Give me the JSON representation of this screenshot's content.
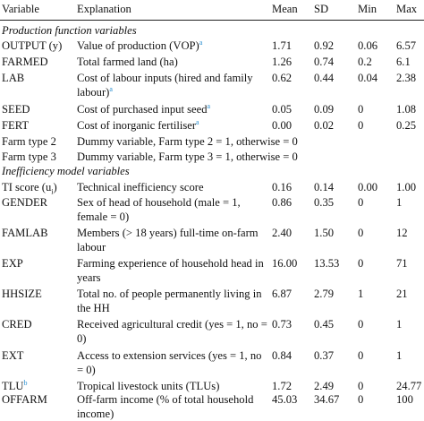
{
  "header": {
    "variable": "Variable",
    "explanation": "Explanation",
    "mean": "Mean",
    "sd": "SD",
    "min": "Min",
    "max": "Max"
  },
  "sections": {
    "production": "Production function variables",
    "inefficiency": "Inefficiency model variables"
  },
  "rows": [
    {
      "variable": "OUTPUT (y)",
      "explanation": "Value of production (VOP)",
      "sup": "a",
      "mean": "1.71",
      "sd": "0.92",
      "min": "0.06",
      "max": "6.57"
    },
    {
      "variable": "FARMED",
      "explanation": "Total farmed land (ha)",
      "mean": "1.26",
      "sd": "0.74",
      "min": "0.2",
      "max": "6.1"
    },
    {
      "variable": "LAB",
      "explanation": "Cost of labour inputs (hired and family labour)",
      "sup": "a",
      "mean": "0.62",
      "sd": "0.44",
      "min": "0.04",
      "max": "2.38"
    },
    {
      "variable": "SEED",
      "explanation": "Cost of purchased input seed",
      "sup": "a",
      "mean": "0.05",
      "sd": "0.09",
      "min": "0",
      "max": "1.08"
    },
    {
      "variable": "FERT",
      "explanation": "Cost of inorganic fertiliser",
      "sup": "a",
      "mean": "0.00",
      "sd": "0.02",
      "min": "0",
      "max": "0.25"
    },
    {
      "variable": "Farm type 2",
      "explanation": "Dummy variable, Farm type 2 = 1, otherwise = 0"
    },
    {
      "variable": "Farm type 3",
      "explanation": "Dummy variable, Farm type 3 = 1, otherwise = 0"
    },
    {
      "variable": "TI score (u",
      "sub": "i",
      "variable_end": ")",
      "explanation": "Technical inefficiency score",
      "mean": "0.16",
      "sd": "0.14",
      "min": "0.00",
      "max": "1.00"
    },
    {
      "variable": "GENDER",
      "explanation": "Sex of head of household (male = 1, female = 0)",
      "mean": "0.86",
      "sd": "0.35",
      "min": "0",
      "max": "1"
    },
    {
      "variable": "FAMLAB",
      "explanation": "Members (> 18 years) full-time on-farm labour",
      "mean": "2.40",
      "sd": "1.50",
      "min": "0",
      "max": "12"
    },
    {
      "variable": "EXP",
      "explanation": "Farming experience of household head in years",
      "mean": "16.00",
      "sd": "13.53",
      "min": "0",
      "max": "71"
    },
    {
      "variable": "HHSIZE",
      "explanation": "Total no. of people permanently living in the HH",
      "mean": "6.87",
      "sd": "2.79",
      "min": "1",
      "max": "21"
    },
    {
      "variable": "CRED",
      "explanation": "Received agricultural credit (yes = 1, no = 0)",
      "mean": "0.73",
      "sd": "0.45",
      "min": "0",
      "max": "1"
    },
    {
      "variable": "EXT",
      "explanation": "Access to extension services (yes = 1, no = 0)",
      "mean": "0.84",
      "sd": "0.37",
      "min": "0",
      "max": "1"
    },
    {
      "variable": "TLU",
      "vsup": "b",
      "explanation": "Tropical livestock units (TLUs)",
      "mean": "1.72",
      "sd": "2.49",
      "min": "0",
      "max": "24.77"
    },
    {
      "variable": "OFFARM",
      "explanation": "Off-farm income (% of total household income)",
      "mean": "45.03",
      "sd": "34.67",
      "min": "0",
      "max": "100"
    }
  ]
}
